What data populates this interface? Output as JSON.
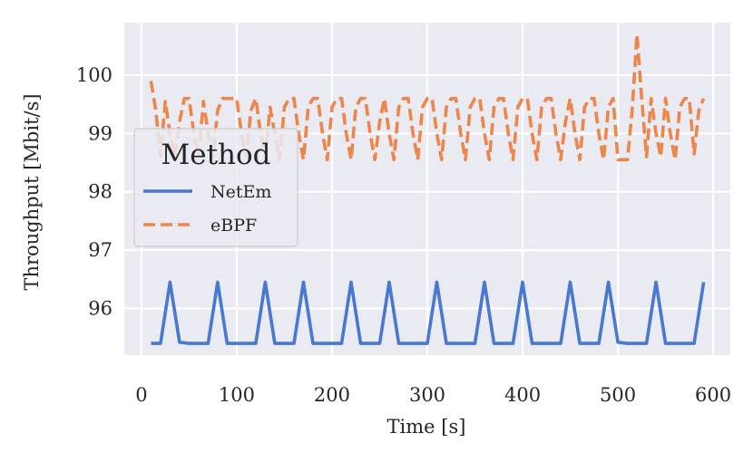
{
  "chart_data": {
    "type": "line",
    "title": "",
    "xlabel": "Time [s]",
    "ylabel": "Throughput [Mbit/s]",
    "xlim": [
      -18,
      618
    ],
    "ylim": [
      95.2,
      100.9
    ],
    "xticks": [
      0,
      100,
      200,
      300,
      400,
      500,
      600
    ],
    "yticks": [
      96,
      97,
      98,
      99,
      100
    ],
    "grid": true,
    "legend": {
      "title": "Method",
      "position": "center-left"
    },
    "series": [
      {
        "name": "NetEm",
        "color": "#4878d0",
        "style": "solid",
        "x": [
          10,
          20,
          30,
          40,
          50,
          60,
          70,
          80,
          90,
          100,
          110,
          120,
          130,
          140,
          150,
          160,
          170,
          180,
          190,
          200,
          210,
          220,
          230,
          240,
          250,
          260,
          270,
          280,
          290,
          300,
          310,
          320,
          330,
          340,
          350,
          360,
          370,
          380,
          390,
          400,
          410,
          420,
          430,
          440,
          450,
          460,
          470,
          480,
          490,
          500,
          510,
          520,
          530,
          540,
          550,
          560,
          570,
          580,
          590
        ],
        "y": [
          95.4,
          95.4,
          96.45,
          95.42,
          95.4,
          95.4,
          95.4,
          96.45,
          95.4,
          95.4,
          95.4,
          95.4,
          96.45,
          95.4,
          95.4,
          95.4,
          96.45,
          95.4,
          95.4,
          95.4,
          95.4,
          96.45,
          95.4,
          95.4,
          95.4,
          96.45,
          95.4,
          95.4,
          95.4,
          95.4,
          96.45,
          95.4,
          95.4,
          95.4,
          95.4,
          96.45,
          95.4,
          95.4,
          95.4,
          96.45,
          95.4,
          95.4,
          95.4,
          95.4,
          96.45,
          95.4,
          95.4,
          95.4,
          96.45,
          95.42,
          95.4,
          95.4,
          95.4,
          96.45,
          95.4,
          95.4,
          95.4,
          95.4,
          96.45
        ]
      },
      {
        "name": "eBPF",
        "color": "#ee854a",
        "style": "dashed",
        "x": [
          10,
          15,
          20,
          25,
          30,
          35,
          40,
          45,
          50,
          55,
          60,
          65,
          70,
          75,
          80,
          85,
          90,
          95,
          100,
          105,
          110,
          115,
          120,
          125,
          130,
          135,
          140,
          145,
          150,
          155,
          160,
          165,
          170,
          175,
          180,
          185,
          190,
          195,
          200,
          205,
          210,
          215,
          220,
          225,
          230,
          235,
          240,
          245,
          250,
          255,
          260,
          265,
          270,
          275,
          280,
          285,
          290,
          295,
          300,
          305,
          310,
          315,
          320,
          325,
          330,
          335,
          340,
          345,
          350,
          355,
          360,
          365,
          370,
          375,
          380,
          385,
          390,
          395,
          400,
          405,
          410,
          415,
          420,
          425,
          430,
          435,
          440,
          445,
          450,
          455,
          460,
          465,
          470,
          475,
          480,
          485,
          490,
          495,
          500,
          505,
          510,
          515,
          520,
          525,
          530,
          535,
          540,
          545,
          550,
          555,
          560,
          565,
          570,
          575,
          580,
          585,
          590
        ],
        "y": [
          99.9,
          99.4,
          98.6,
          99.55,
          99.0,
          98.6,
          99.2,
          99.6,
          99.6,
          99.0,
          98.6,
          99.55,
          99.0,
          98.6,
          99.4,
          99.6,
          99.6,
          99.6,
          99.6,
          99.0,
          98.6,
          99.4,
          99.6,
          99.0,
          98.6,
          99.45,
          99.0,
          98.55,
          99.45,
          99.6,
          99.6,
          99.0,
          98.55,
          99.45,
          99.6,
          99.6,
          99.0,
          98.55,
          99.45,
          99.6,
          99.6,
          99.0,
          98.55,
          99.45,
          99.6,
          99.6,
          99.0,
          98.55,
          99.2,
          99.6,
          99.0,
          98.55,
          99.45,
          99.6,
          99.6,
          99.0,
          98.55,
          99.45,
          99.6,
          99.6,
          99.0,
          98.55,
          99.45,
          99.6,
          99.6,
          99.0,
          98.55,
          99.45,
          99.6,
          99.6,
          99.0,
          98.55,
          99.45,
          99.6,
          99.6,
          99.0,
          98.55,
          99.45,
          99.6,
          99.6,
          99.0,
          98.55,
          99.45,
          99.6,
          99.6,
          99.0,
          98.55,
          99.2,
          99.6,
          99.0,
          98.55,
          99.45,
          99.6,
          99.6,
          99.0,
          98.55,
          99.45,
          99.6,
          98.55,
          98.55,
          98.55,
          99.4,
          100.7,
          99.6,
          98.6,
          99.6,
          99.0,
          98.6,
          99.6,
          99.0,
          98.55,
          99.45,
          99.6,
          99.6,
          98.65,
          99.4,
          99.6
        ]
      }
    ]
  }
}
